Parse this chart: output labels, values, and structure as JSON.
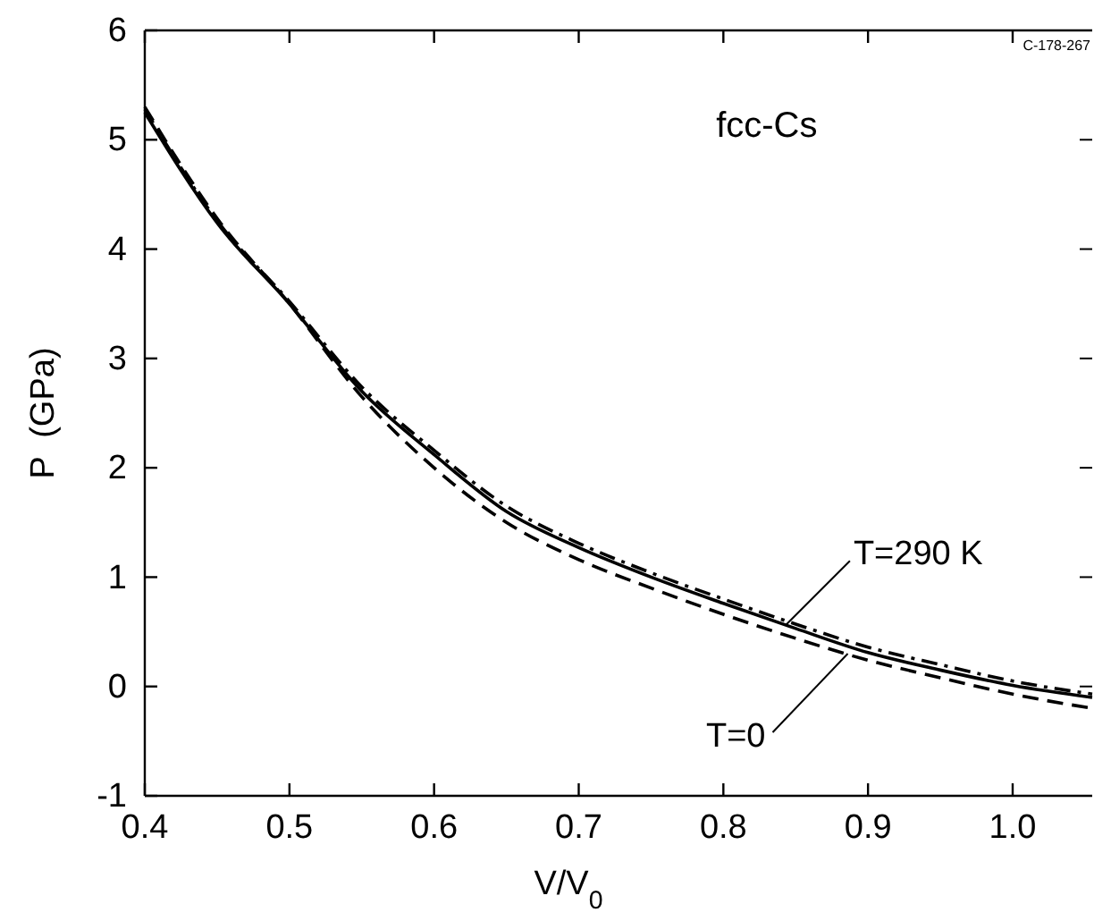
{
  "chart_data": {
    "type": "line",
    "xlabel": "V/V$_{0}$",
    "ylabel": "P  (GPa)",
    "xlim": [
      0.4,
      1.055
    ],
    "ylim": [
      -1,
      6
    ],
    "xticks": [
      0.4,
      0.5,
      0.6,
      0.7,
      0.8,
      0.9,
      {
        "value": 1,
        "label": "1.0"
      }
    ],
    "yticks": [
      -1,
      0,
      1,
      2,
      3,
      4,
      5,
      6
    ],
    "x": [
      0.4,
      0.45,
      0.5,
      0.55,
      0.6,
      0.65,
      0.7,
      0.75,
      0.8,
      0.85,
      0.9,
      0.95,
      1.0,
      1.055
    ],
    "series": [
      {
        "color": "#000000",
        "line_style": "solid",
        "values": [
          5.25,
          4.24,
          3.5,
          2.7,
          2.12,
          1.6,
          1.27,
          1.0,
          0.76,
          0.53,
          0.31,
          0.15,
          0.01,
          -0.1
        ]
      },
      {
        "color": "#000000",
        "line_style": "dashed",
        "values": [
          5.3,
          4.28,
          3.5,
          2.65,
          2.0,
          1.5,
          1.16,
          0.9,
          0.66,
          0.44,
          0.24,
          0.08,
          -0.07,
          -0.2
        ]
      },
      {
        "color": "#000000",
        "line_style": "dashdot",
        "values": [
          5.28,
          4.26,
          3.52,
          2.74,
          2.16,
          1.65,
          1.31,
          1.04,
          0.8,
          0.57,
          0.36,
          0.2,
          0.05,
          -0.07
        ]
      }
    ],
    "annotations": [
      "fcc-Cs",
      {
        "text": "T=290 K",
        "x": 0.843,
        "y": 0.56
      },
      {
        "text": "T=0",
        "x": 0.886,
        "y": 0.3
      },
      "C-178-267"
    ],
    "grid": false
  }
}
